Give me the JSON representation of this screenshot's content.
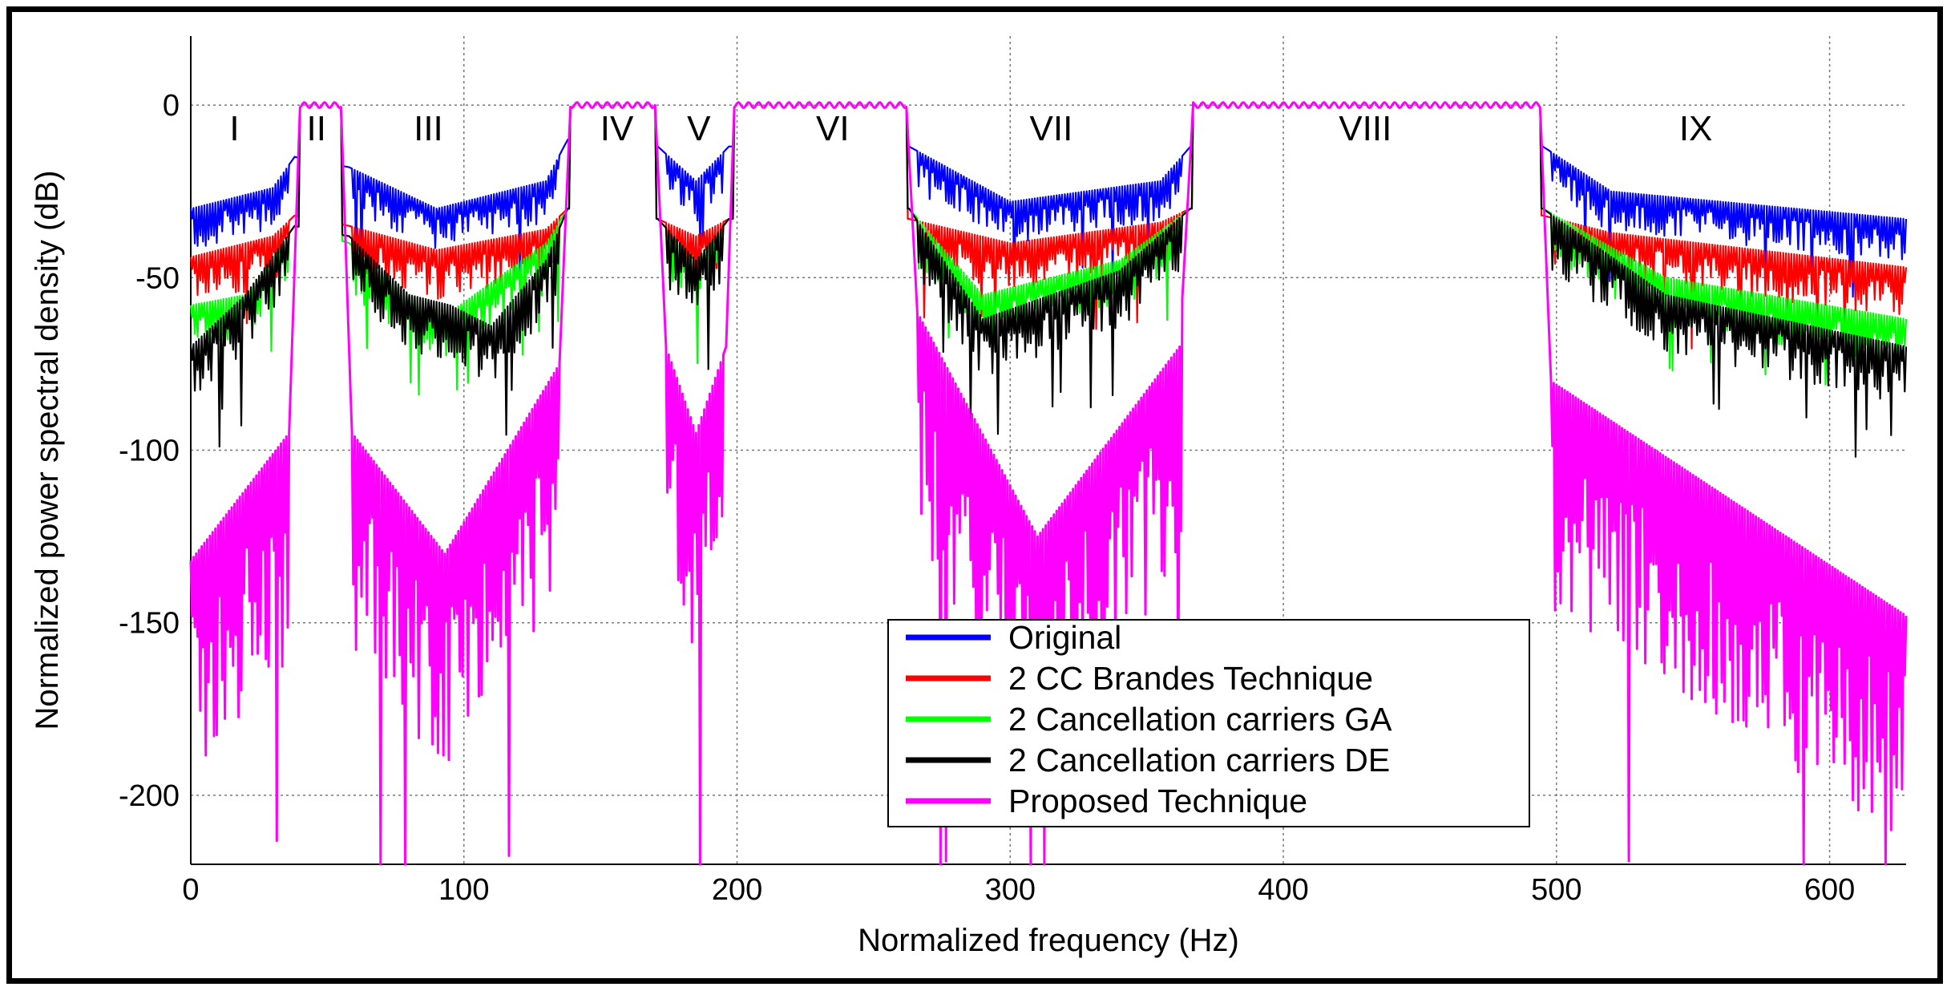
{
  "chart_data": {
    "type": "line",
    "title": "",
    "xlabel": "Normalized frequency (Hz)",
    "ylabel": "Normalized power spectral density (dB)",
    "xlim": [
      0,
      628
    ],
    "ylim": [
      -220,
      20
    ],
    "xticks": [
      0,
      100,
      200,
      300,
      400,
      500,
      600
    ],
    "yticks": [
      0,
      -50,
      -100,
      -150,
      -200
    ],
    "grid": true,
    "legend_position": "bottom-center",
    "passbands": [
      [
        40,
        55
      ],
      [
        139,
        170
      ],
      [
        199,
        262
      ],
      [
        367,
        494
      ]
    ],
    "regions": [
      {
        "label": "I",
        "x": 16
      },
      {
        "label": "II",
        "x": 46
      },
      {
        "label": "III",
        "x": 87
      },
      {
        "label": "IV",
        "x": 156
      },
      {
        "label": "V",
        "x": 186
      },
      {
        "label": "VI",
        "x": 235
      },
      {
        "label": "VII",
        "x": 315
      },
      {
        "label": "VIII",
        "x": 430
      },
      {
        "label": "IX",
        "x": 551
      }
    ],
    "series": [
      {
        "name": "Original",
        "color": "#0000ff",
        "stopband_envelope": [
          [
            0,
            -30
          ],
          [
            30,
            -24
          ],
          [
            38,
            -15
          ],
          [
            58,
            -18
          ],
          [
            90,
            -30
          ],
          [
            130,
            -22
          ],
          [
            138,
            -10
          ],
          [
            171,
            -12
          ],
          [
            185,
            -22
          ],
          [
            197,
            -12
          ],
          [
            263,
            -12
          ],
          [
            300,
            -28
          ],
          [
            355,
            -22
          ],
          [
            366,
            -12
          ],
          [
            495,
            -12
          ],
          [
            520,
            -25
          ],
          [
            628,
            -33
          ]
        ],
        "ripple_depth": 10
      },
      {
        "name": "2 CC Brandes Technique",
        "color": "#ff0000",
        "stopband_envelope": [
          [
            0,
            -44
          ],
          [
            30,
            -38
          ],
          [
            38,
            -32
          ],
          [
            58,
            -35
          ],
          [
            90,
            -42
          ],
          [
            130,
            -36
          ],
          [
            138,
            -30
          ],
          [
            171,
            -33
          ],
          [
            185,
            -38
          ],
          [
            197,
            -33
          ],
          [
            263,
            -33
          ],
          [
            300,
            -40
          ],
          [
            355,
            -34
          ],
          [
            366,
            -30
          ],
          [
            495,
            -32
          ],
          [
            520,
            -37
          ],
          [
            628,
            -47
          ]
        ],
        "ripple_depth": 12
      },
      {
        "name": "2 Cancellation carriers GA",
        "color": "#00ff00",
        "stopband_envelope": [
          [
            0,
            -58
          ],
          [
            20,
            -55
          ],
          [
            38,
            -35
          ],
          [
            58,
            -40
          ],
          [
            80,
            -55
          ],
          [
            95,
            -60
          ],
          [
            130,
            -40
          ],
          [
            138,
            -30
          ],
          [
            171,
            -33
          ],
          [
            185,
            -45
          ],
          [
            197,
            -33
          ],
          [
            263,
            -30
          ],
          [
            290,
            -55
          ],
          [
            340,
            -45
          ],
          [
            366,
            -30
          ],
          [
            495,
            -30
          ],
          [
            540,
            -50
          ],
          [
            628,
            -62
          ]
        ],
        "ripple_depth": 12
      },
      {
        "name": "2 Cancellation carriers DE",
        "color": "#000000",
        "stopband_envelope": [
          [
            0,
            -70
          ],
          [
            20,
            -55
          ],
          [
            38,
            -35
          ],
          [
            58,
            -38
          ],
          [
            80,
            -55
          ],
          [
            95,
            -58
          ],
          [
            110,
            -64
          ],
          [
            130,
            -45
          ],
          [
            138,
            -30
          ],
          [
            171,
            -33
          ],
          [
            185,
            -45
          ],
          [
            197,
            -33
          ],
          [
            263,
            -30
          ],
          [
            290,
            -62
          ],
          [
            340,
            -48
          ],
          [
            366,
            -30
          ],
          [
            495,
            -30
          ],
          [
            540,
            -55
          ],
          [
            628,
            -70
          ]
        ],
        "ripple_depth": 14
      },
      {
        "name": "Proposed Technique",
        "color": "#ff00ff",
        "stopband_envelope": [
          [
            0,
            -132
          ],
          [
            36,
            -95
          ],
          [
            40,
            0
          ],
          [
            55,
            0
          ],
          [
            59,
            -95
          ],
          [
            93,
            -130
          ],
          [
            135,
            -75
          ],
          [
            139,
            0
          ],
          [
            170,
            0
          ],
          [
            174,
            -70
          ],
          [
            185,
            -95
          ],
          [
            196,
            -70
          ],
          [
            199,
            0
          ],
          [
            262,
            0
          ],
          [
            266,
            -60
          ],
          [
            310,
            -125
          ],
          [
            362,
            -70
          ],
          [
            367,
            0
          ],
          [
            494,
            0
          ],
          [
            498,
            -80
          ],
          [
            628,
            -148
          ]
        ],
        "ripple_depth": 55
      }
    ]
  }
}
